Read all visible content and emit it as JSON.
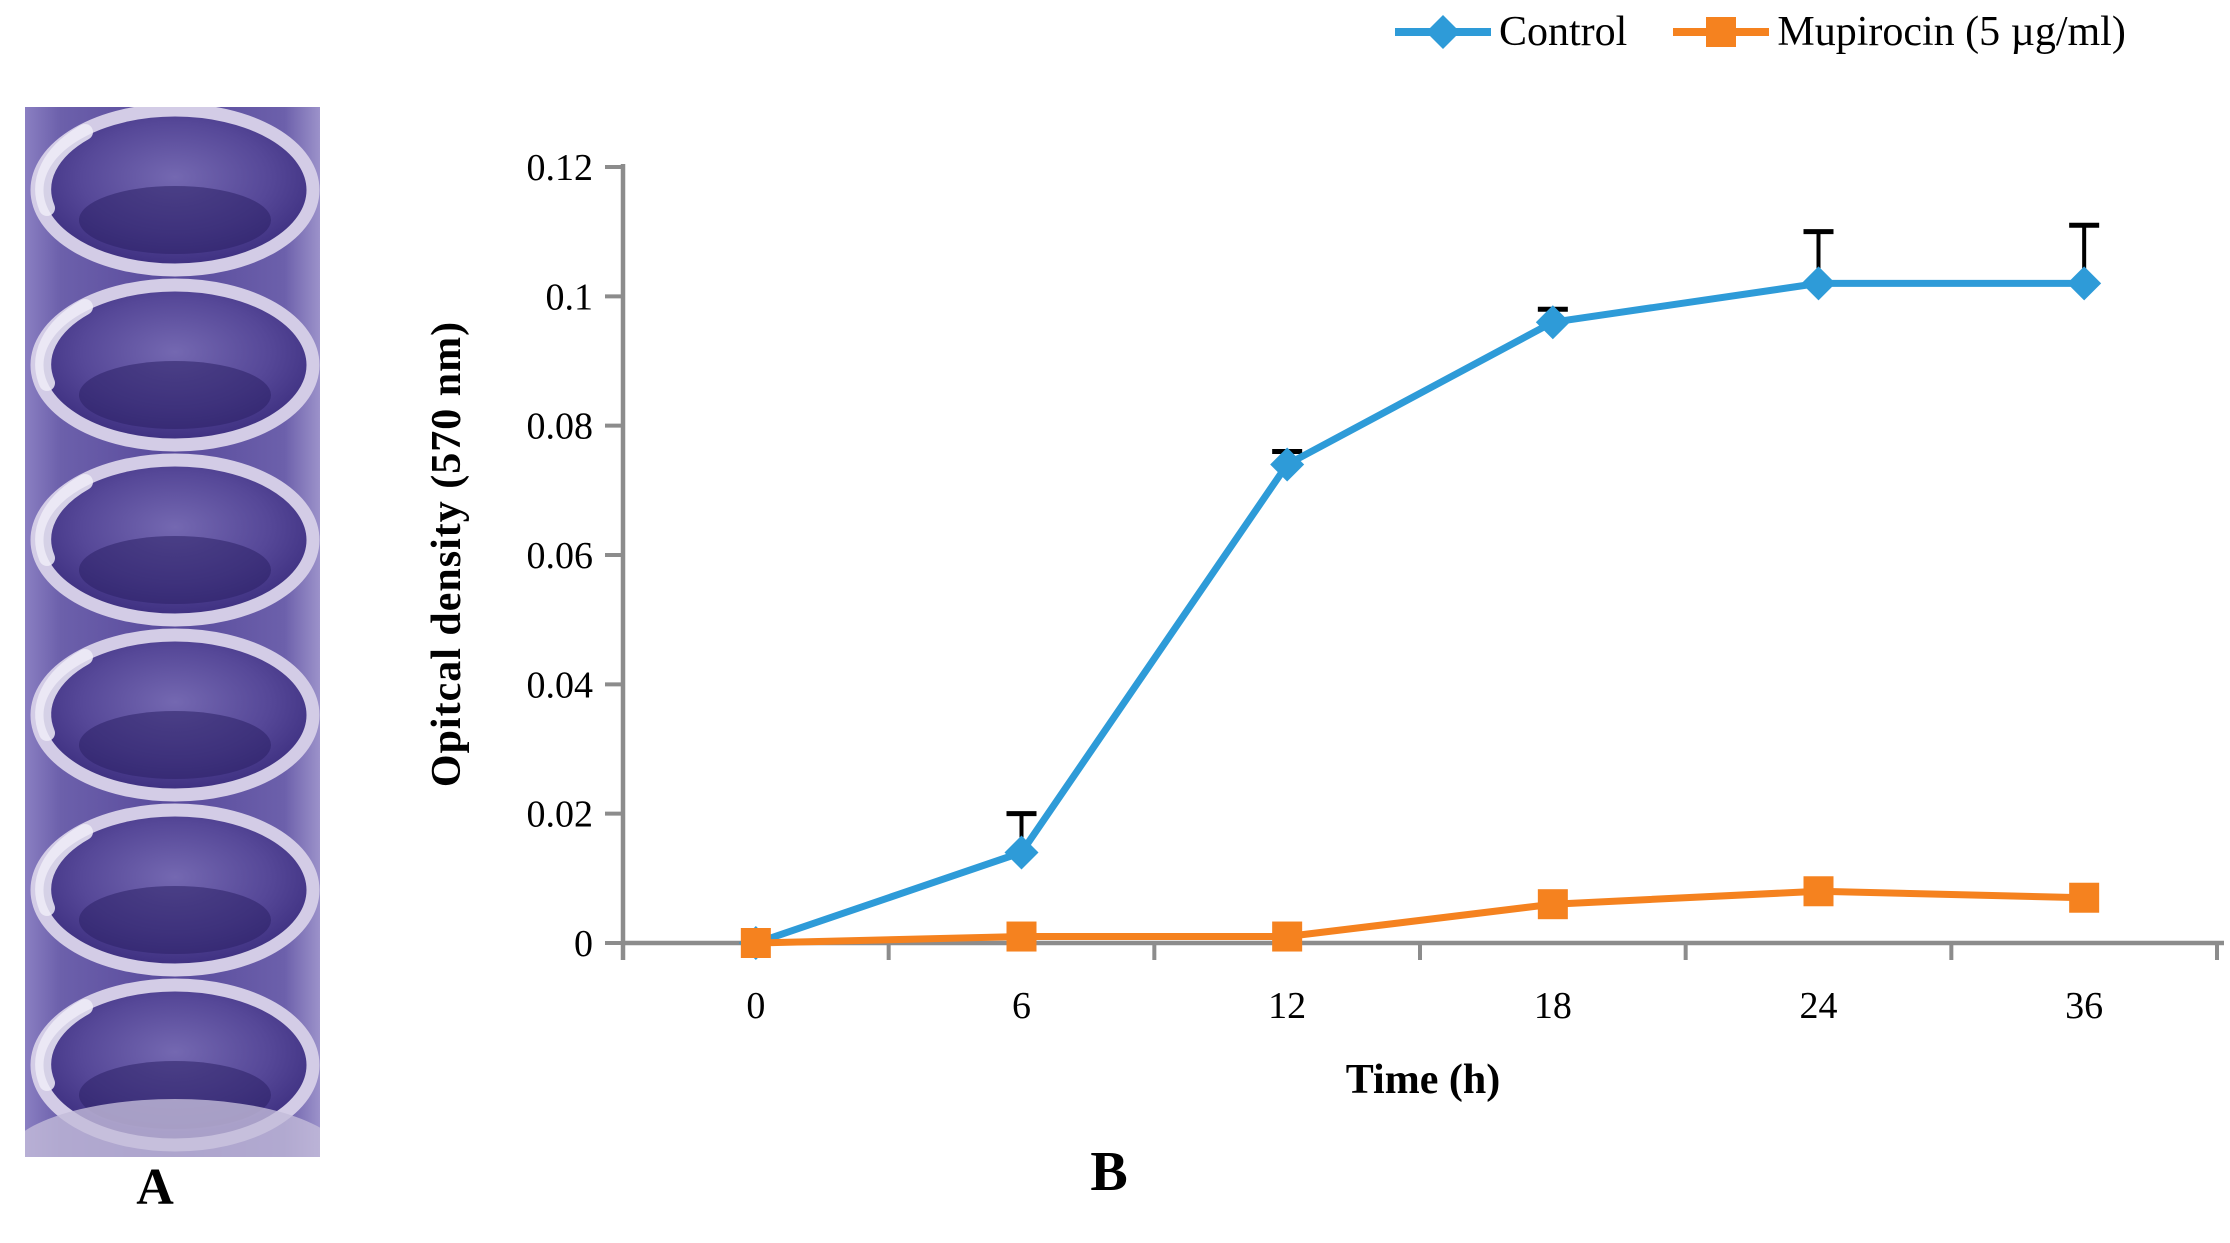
{
  "panel_a": {
    "label": "A",
    "description": "photograph of crystal-violet stained microtiter plate wells (purple biofilm staining), six wells in a vertical strip"
  },
  "panel_b": {
    "label": "B"
  },
  "chart_data": {
    "type": "line",
    "title": "",
    "xlabel": "Time (h)",
    "ylabel": "Opitcal density (570 nm)",
    "x": [
      0,
      6,
      12,
      18,
      24,
      36
    ],
    "x_tick_labels": [
      "0",
      "6",
      "12",
      "18",
      "24",
      "36"
    ],
    "y_tick_values": [
      0,
      0.02,
      0.04,
      0.06,
      0.08,
      0.1,
      0.12
    ],
    "y_tick_labels": [
      "0",
      "0.02",
      "0.04",
      "0.06",
      "0.08",
      "0.1",
      "0.12"
    ],
    "ylim": [
      0,
      0.12
    ],
    "grid": false,
    "legend_position": "top-right",
    "series": [
      {
        "name": "Control",
        "color": "#2E9BD8",
        "marker": "diamond",
        "values": [
          0.0,
          0.014,
          0.074,
          0.096,
          0.102,
          0.102
        ],
        "errors_up": [
          0,
          0.006,
          0.002,
          0.002,
          0.008,
          0.009
        ]
      },
      {
        "name": "Mupirocin (5 µg/ml)",
        "color": "#F5821F",
        "marker": "square",
        "values": [
          0.0,
          0.001,
          0.001,
          0.006,
          0.008,
          0.007
        ],
        "errors_up": [
          0,
          0,
          0,
          0,
          0,
          0
        ]
      }
    ]
  },
  "colors": {
    "axis": "#8C8C8C",
    "error_bar": "#000000",
    "text": "#000000",
    "photo_purple_dark": "#3B2D7E",
    "photo_purple_mid": "#584A9C",
    "photo_rim_light": "#D3CCE6"
  }
}
